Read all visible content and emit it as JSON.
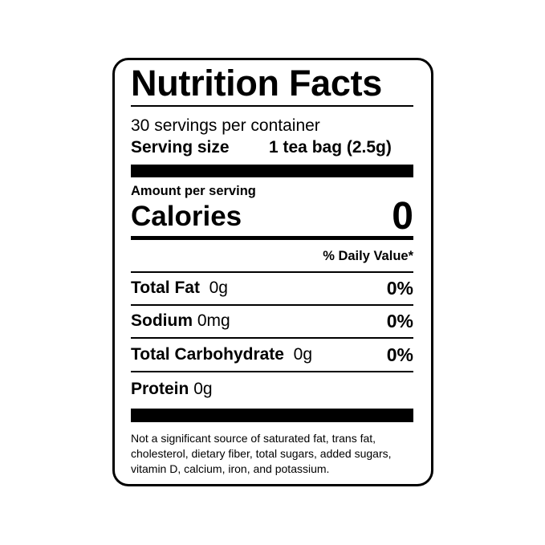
{
  "label": {
    "title": "Nutrition Facts",
    "servings_per_container": "30 servings per container",
    "serving_size_label": "Serving size",
    "serving_size_value": "1 tea bag (2.5g)",
    "amount_per_serving": "Amount per serving",
    "calories_label": "Calories",
    "calories_value": "0",
    "daily_value_header": "% Daily Value*",
    "nutrients": [
      {
        "name": "Total Fat",
        "amount": "0g",
        "dv": "0%"
      },
      {
        "name": "Sodium",
        "amount": "0mg",
        "dv": "0%"
      },
      {
        "name": "Total Carbohydrate",
        "amount": "0g",
        "dv": "0%"
      },
      {
        "name": "Protein",
        "amount": "0g",
        "dv": ""
      }
    ],
    "footnote_lines": [
      "Not a significant source of saturated fat, trans fat,",
      "cholesterol, dietary fiber, total sugars, added sugars,",
      "vitamin D, calcium, iron, and potassium."
    ]
  }
}
